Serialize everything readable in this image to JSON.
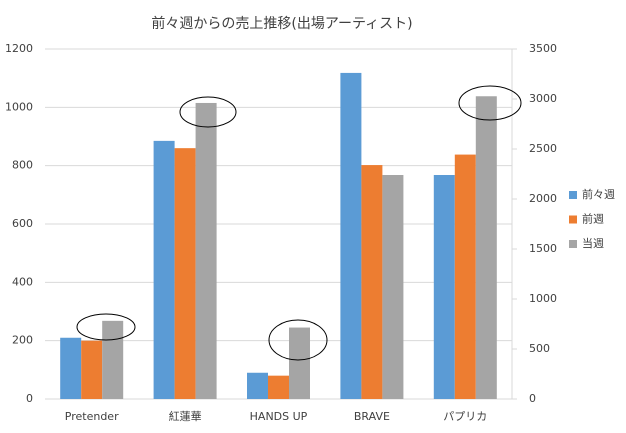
{
  "chart_data": {
    "type": "bar",
    "title": "前々週からの売上推移(出場アーティスト)",
    "categories": [
      "Pretender",
      "紅蓮華",
      "HANDS UP",
      "BRAVE",
      "パプリカ"
    ],
    "series": [
      {
        "name": "前々週",
        "color": "#5b9bd5",
        "values": [
          210,
          885,
          90,
          1118,
          768
        ]
      },
      {
        "name": "前週",
        "color": "#ed7d31",
        "values": [
          200,
          860,
          80,
          802,
          838
        ]
      },
      {
        "name": "当週",
        "color": "#a5a5a5",
        "values": [
          268,
          1015,
          245,
          768,
          1038
        ]
      }
    ],
    "ylim": [
      0,
      1200
    ],
    "yticks": [
      0,
      200,
      400,
      600,
      800,
      1000,
      1200
    ],
    "y2lim": [
      0,
      3500
    ],
    "y2ticks": [
      0,
      500,
      1000,
      1500,
      2000,
      2500,
      3000,
      3500
    ],
    "grid": true,
    "legend": "right"
  }
}
